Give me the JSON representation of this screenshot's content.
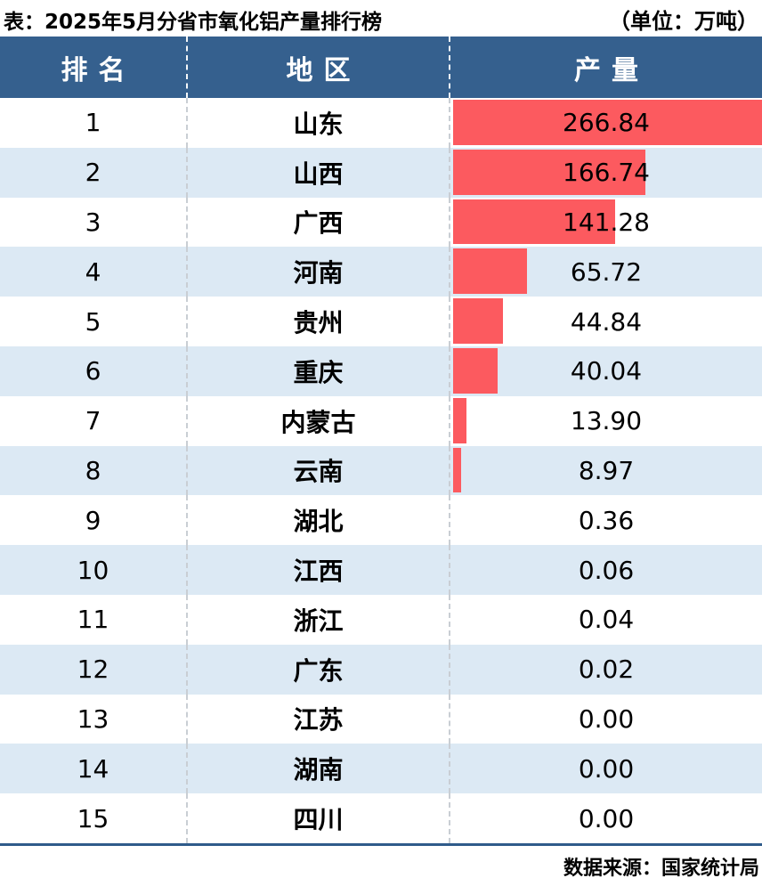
{
  "title": "表：2025年5月分省市氧化铝产量排行榜",
  "unit_label": "（单位：万吨）",
  "header": {
    "rank": "排名",
    "region": "地区",
    "output": "产量"
  },
  "rows": [
    {
      "rank": "1",
      "region": "山东",
      "value": "266.84"
    },
    {
      "rank": "2",
      "region": "山西",
      "value": "166.74"
    },
    {
      "rank": "3",
      "region": "广西",
      "value": "141.28"
    },
    {
      "rank": "4",
      "region": "河南",
      "value": "65.72"
    },
    {
      "rank": "5",
      "region": "贵州",
      "value": "44.84"
    },
    {
      "rank": "6",
      "region": "重庆",
      "value": "40.04"
    },
    {
      "rank": "7",
      "region": "内蒙古",
      "value": "13.90"
    },
    {
      "rank": "8",
      "region": "云南",
      "value": "8.97"
    },
    {
      "rank": "9",
      "region": "湖北",
      "value": "0.36"
    },
    {
      "rank": "10",
      "region": "江西",
      "value": "0.06"
    },
    {
      "rank": "11",
      "region": "浙江",
      "value": "0.04"
    },
    {
      "rank": "12",
      "region": "广东",
      "value": "0.02"
    },
    {
      "rank": "13",
      "region": "江苏",
      "value": "0.00"
    },
    {
      "rank": "14",
      "region": "湖南",
      "value": "0.00"
    },
    {
      "rank": "15",
      "region": "四川",
      "value": "0.00"
    }
  ],
  "footer": {
    "source": "数据来源：国家统计局"
  },
  "colors": {
    "header_bg": "#35608E",
    "bar": "#FC5A5F",
    "row_alt": "#DCE9F4",
    "rule": "#2F5B8A"
  },
  "chart_data": {
    "type": "bar",
    "orientation": "horizontal",
    "title": "2025年5月分省市氧化铝产量排行榜",
    "unit": "万吨",
    "categories": [
      "山东",
      "山西",
      "广西",
      "河南",
      "贵州",
      "重庆",
      "内蒙古",
      "云南",
      "湖北",
      "江西",
      "浙江",
      "广东",
      "江苏",
      "湖南",
      "四川"
    ],
    "values": [
      266.84,
      166.74,
      141.28,
      65.72,
      44.84,
      40.04,
      13.9,
      8.97,
      0.36,
      0.06,
      0.04,
      0.02,
      0.0,
      0.0,
      0.0
    ],
    "xlim": [
      0,
      266.84
    ],
    "legend": [],
    "grid": false,
    "source": "数据来源：国家统计局"
  }
}
